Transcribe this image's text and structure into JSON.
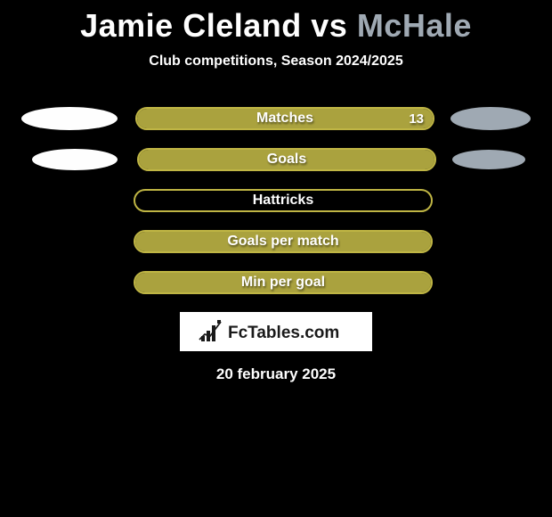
{
  "title": {
    "player1": "Jamie Cleland",
    "vs": "vs",
    "player2": "McHale",
    "p1_color": "#fefefe",
    "p2_color": "#9fa9b3"
  },
  "subtitle": "Club competitions, Season 2024/2025",
  "background_color": "#000000",
  "stats": [
    {
      "label": "Matches",
      "value": "13",
      "fill_pct": 100,
      "fill_color": "#aaa23e",
      "border_color": "#bfb544",
      "show_left_dot": true,
      "show_right_dot": true,
      "left_dot_small": false,
      "right_dot_small": false
    },
    {
      "label": "Goals",
      "value": "",
      "fill_pct": 100,
      "fill_color": "#aaa23e",
      "border_color": "#bfb544",
      "show_left_dot": true,
      "show_right_dot": true,
      "left_dot_small": true,
      "right_dot_small": true
    },
    {
      "label": "Hattricks",
      "value": "",
      "fill_pct": 0,
      "fill_color": "#aaa23e",
      "border_color": "#bfb544",
      "show_left_dot": false,
      "show_right_dot": false
    },
    {
      "label": "Goals per match",
      "value": "",
      "fill_pct": 100,
      "fill_color": "#aaa23e",
      "border_color": "#bfb544",
      "show_left_dot": false,
      "show_right_dot": false
    },
    {
      "label": "Min per goal",
      "value": "",
      "fill_pct": 100,
      "fill_color": "#aaa23e",
      "border_color": "#bfb544",
      "show_left_dot": false,
      "show_right_dot": false
    }
  ],
  "dot_colors": {
    "left": "#fefefe",
    "right": "#9fa9b3"
  },
  "logo_text": "FcTables.com",
  "date": "20 february 2025"
}
